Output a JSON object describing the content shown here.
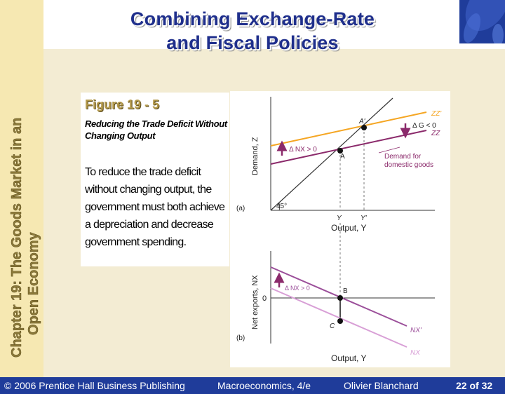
{
  "slide": {
    "title_line1": "Combining Exchange-Rate",
    "title_line2": "and Fiscal Policies",
    "chapter_line1": "Chapter 19: The Goods Market in an",
    "chapter_line2": "Open Economy"
  },
  "figure": {
    "number": "Figure 19 - 5",
    "subtitle": "Reducing the Trade Deficit Without Changing Output",
    "body": "To reduce the trade deficit without changing output, the government must both achieve a depreciation and decrease government spending."
  },
  "panel_a": {
    "label": "(a)",
    "y_axis": "Demand, Z",
    "x_axis": "Output, Y",
    "angle": "45°",
    "zz_prime": "ZZ'",
    "zz": "ZZ",
    "delta_g": "Δ G < 0",
    "delta_nx": "Δ NX > 0",
    "demand_note_1": "Demand for",
    "demand_note_2": "domestic goods",
    "point_a": "A",
    "point_a_prime": "A'",
    "tick_y": "Y",
    "tick_y_prime": "Y'"
  },
  "panel_b": {
    "label": "(b)",
    "y_axis": "Net exports, NX",
    "x_axis": "Output, Y",
    "zero": "0",
    "delta_nx": "Δ NX > 0",
    "nx_prime": "NX'",
    "nx": "NX",
    "point_b": "B",
    "point_c": "C"
  },
  "footer": {
    "publisher": "© 2006 Prentice Hall Business Publishing",
    "book": "Macroeconomics, 4/e",
    "author": "Olivier Blanchard",
    "page": "22 of 32"
  },
  "colors": {
    "zz_prime": "#f5a623",
    "zz": "#8b2a6b",
    "nx_prime": "#9b4f9a",
    "nx": "#d89fd6",
    "title": "#1f2f8c",
    "footer_bg": "#1f3c9a"
  }
}
